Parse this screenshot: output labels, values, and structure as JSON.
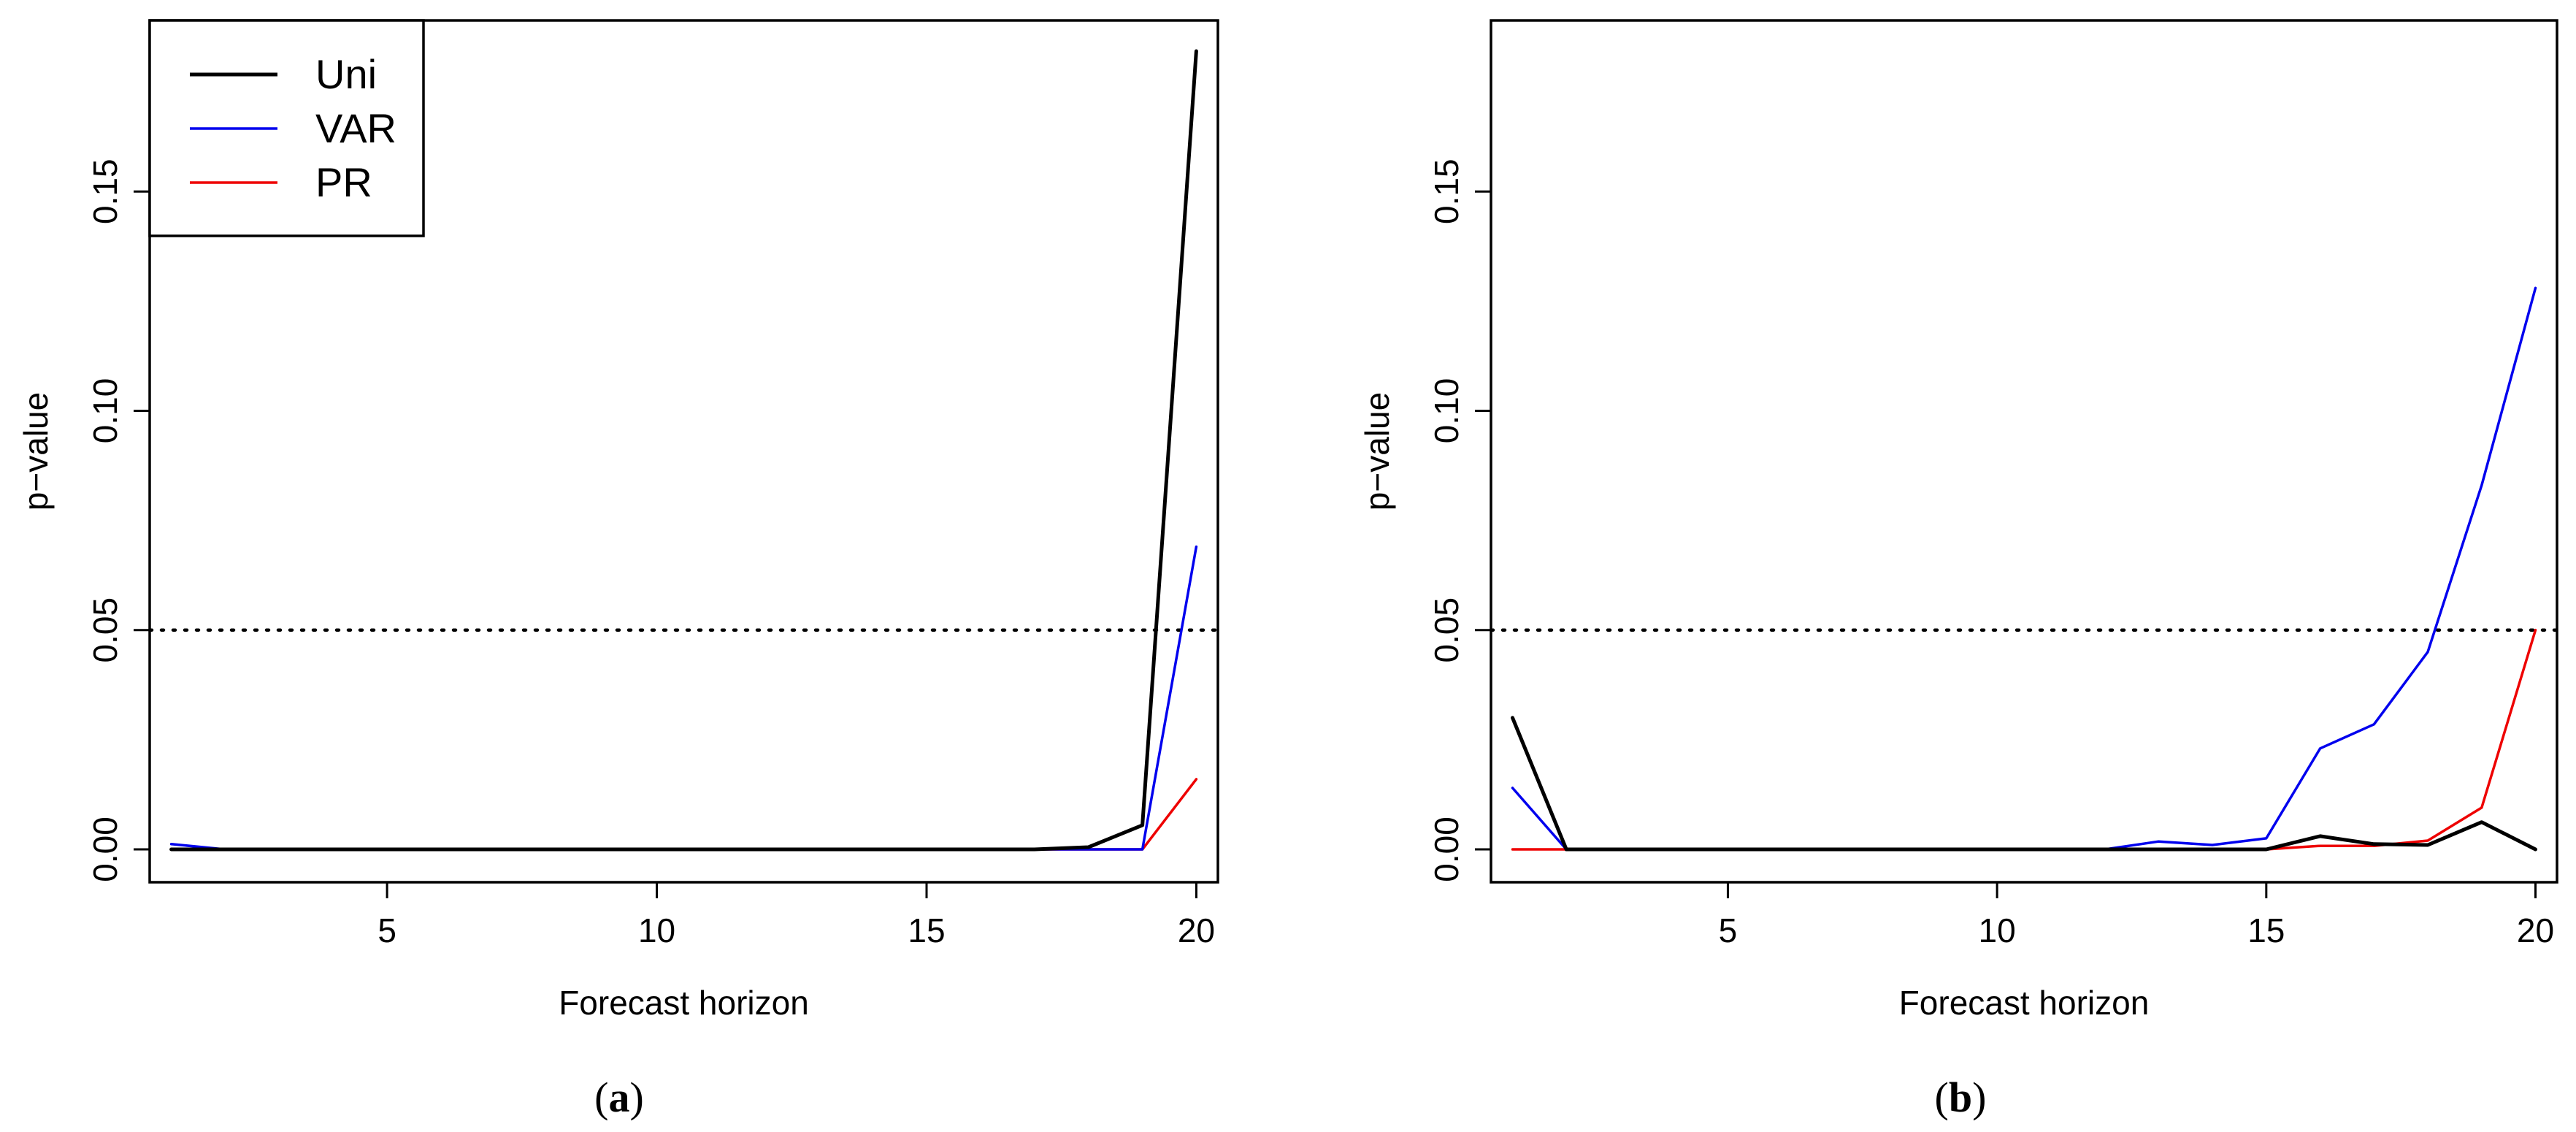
{
  "chart_data": [
    {
      "type": "line",
      "panel_label": "(a)",
      "panel_letter": "a",
      "xlabel": "Forecast horizon",
      "ylabel": "p−value",
      "xlim": [
        0.6,
        20.4
      ],
      "ylim": [
        -0.0075,
        0.189
      ],
      "x_ticks": [
        5,
        10,
        15,
        20
      ],
      "y_ticks": [
        0.0,
        0.05,
        0.1,
        0.15
      ],
      "y_tick_labels": [
        "0.00",
        "0.05",
        "0.10",
        "0.15"
      ],
      "reference_line": {
        "y": 0.05,
        "style": "dotted"
      },
      "legend": {
        "position": "top-left",
        "entries": [
          "Uni",
          "VAR",
          "PR"
        ]
      },
      "x": [
        1,
        2,
        3,
        4,
        5,
        6,
        7,
        8,
        9,
        10,
        11,
        12,
        13,
        14,
        15,
        16,
        17,
        18,
        19,
        20
      ],
      "series": [
        {
          "name": "Uni",
          "color": "#000000",
          "width": 5,
          "values": [
            0.0,
            0.0,
            0.0,
            0.0,
            0.0,
            0.0,
            0.0,
            0.0,
            0.0,
            0.0,
            0.0,
            0.0,
            0.0,
            0.0,
            0.0,
            0.0,
            0.0,
            0.0005,
            0.0055,
            0.182
          ]
        },
        {
          "name": "VAR",
          "color": "#0000ee",
          "width": 3.5,
          "values": [
            0.0012,
            0.0,
            0.0,
            0.0,
            0.0,
            0.0,
            0.0,
            0.0,
            0.0,
            0.0,
            0.0,
            0.0,
            0.0,
            0.0,
            0.0,
            0.0,
            0.0,
            0.0,
            0.0,
            0.069
          ]
        },
        {
          "name": "PR",
          "color": "#ee0000",
          "width": 3.5,
          "values": [
            0.0,
            0.0,
            0.0,
            0.0,
            0.0,
            0.0,
            0.0,
            0.0,
            0.0,
            0.0,
            0.0,
            0.0,
            0.0,
            0.0,
            0.0,
            0.0,
            0.0,
            0.0,
            0.0,
            0.016
          ]
        }
      ]
    },
    {
      "type": "line",
      "panel_label": "(b)",
      "panel_letter": "b",
      "xlabel": "Forecast horizon",
      "ylabel": "p−value",
      "xlim": [
        0.6,
        20.4
      ],
      "ylim": [
        -0.0075,
        0.189
      ],
      "x_ticks": [
        5,
        10,
        15,
        20
      ],
      "y_ticks": [
        0.0,
        0.05,
        0.1,
        0.15
      ],
      "y_tick_labels": [
        "0.00",
        "0.05",
        "0.10",
        "0.15"
      ],
      "reference_line": {
        "y": 0.05,
        "style": "dotted"
      },
      "x": [
        1,
        2,
        3,
        4,
        5,
        6,
        7,
        8,
        9,
        10,
        11,
        12,
        13,
        14,
        15,
        16,
        17,
        18,
        19,
        20
      ],
      "series": [
        {
          "name": "Uni",
          "color": "#000000",
          "width": 5,
          "values": [
            0.03,
            0.0,
            0.0,
            0.0,
            0.0,
            0.0,
            0.0,
            0.0,
            0.0,
            0.0,
            0.0,
            0.0,
            0.0,
            0.0,
            0.0,
            0.003,
            0.0012,
            0.001,
            0.0062,
            0.0
          ]
        },
        {
          "name": "VAR",
          "color": "#0000ee",
          "width": 3.5,
          "values": [
            0.014,
            0.0,
            0.0,
            0.0,
            0.0,
            0.0,
            0.0,
            0.0,
            0.0,
            0.0,
            0.0,
            0.0,
            0.0018,
            0.001,
            0.0025,
            0.023,
            0.0285,
            0.045,
            0.083,
            0.128
          ]
        },
        {
          "name": "PR",
          "color": "#ee0000",
          "width": 3.5,
          "values": [
            0.0,
            0.0,
            0.0,
            0.0,
            0.0,
            0.0,
            0.0,
            0.0,
            0.0,
            0.0,
            0.0,
            0.0,
            0.0,
            0.0,
            0.0,
            0.0008,
            0.0008,
            0.002,
            0.0095,
            0.05
          ]
        }
      ]
    }
  ]
}
